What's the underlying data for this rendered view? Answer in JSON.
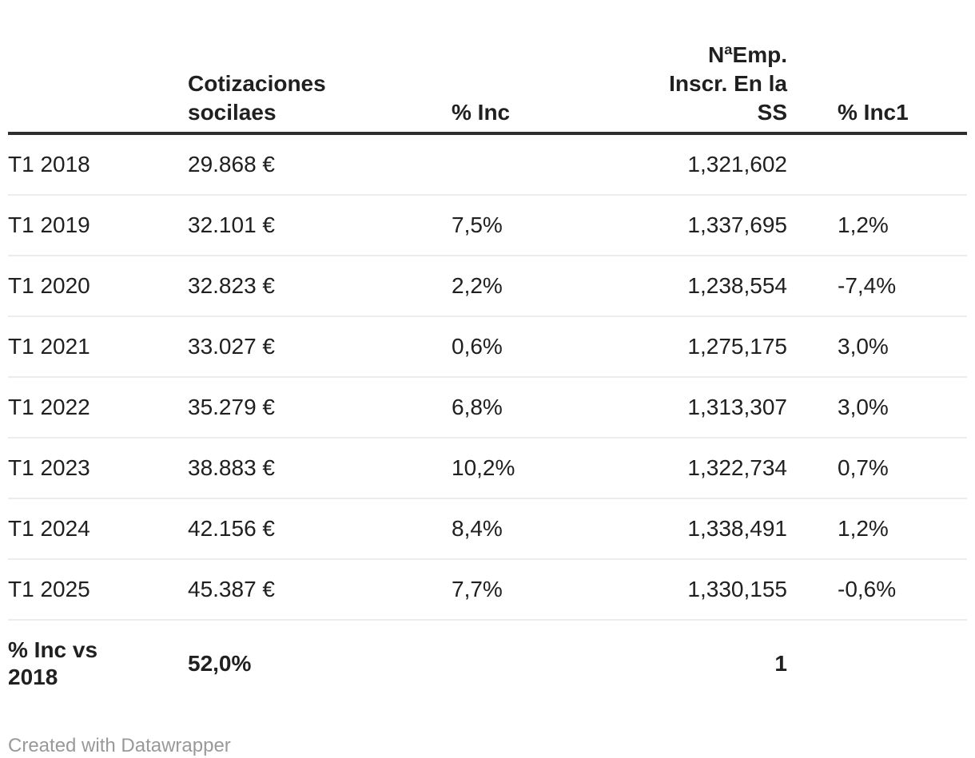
{
  "chart_data": {
    "type": "table",
    "title": "",
    "columns": [
      "",
      "Cotizaciones socilaes",
      "% Inc",
      "NªEmp. Inscr. En la SS",
      "% Inc1"
    ],
    "column_alignments": [
      "left",
      "left",
      "left",
      "right",
      "left"
    ],
    "rows": [
      [
        "T1 2018",
        "29.868 €",
        "",
        "1,321,602",
        ""
      ],
      [
        "T1 2019",
        "32.101 €",
        "7,5%",
        "1,337,695",
        "1,2%"
      ],
      [
        "T1 2020",
        "32.823 €",
        "2,2%",
        "1,238,554",
        "-7,4%"
      ],
      [
        "T1 2021",
        "33.027 €",
        "0,6%",
        "1,275,175",
        "3,0%"
      ],
      [
        "T1 2022",
        "35.279 €",
        "6,8%",
        "1,313,307",
        "3,0%"
      ],
      [
        "T1 2023",
        "38.883 €",
        "10,2%",
        "1,322,734",
        "0,7%"
      ],
      [
        "T1 2024",
        "42.156 €",
        "8,4%",
        "1,338,491",
        "1,2%"
      ],
      [
        "T1 2025",
        "45.387 €",
        "7,7%",
        "1,330,155",
        "-0,6%"
      ]
    ],
    "total_row": [
      "% Inc vs 2018",
      "52,0%",
      "",
      "1",
      ""
    ],
    "layout": {
      "header_bold": true,
      "total_row_bold": true,
      "grid": "horizontal-only",
      "header_border_thick": true
    }
  },
  "footer": {
    "attribution": "Created with Datawrapper"
  },
  "colors": {
    "text": "#202020",
    "header_border": "#2e2e2e",
    "row_border": "#ececec",
    "footer_text": "#999999",
    "background": "#ffffff"
  }
}
